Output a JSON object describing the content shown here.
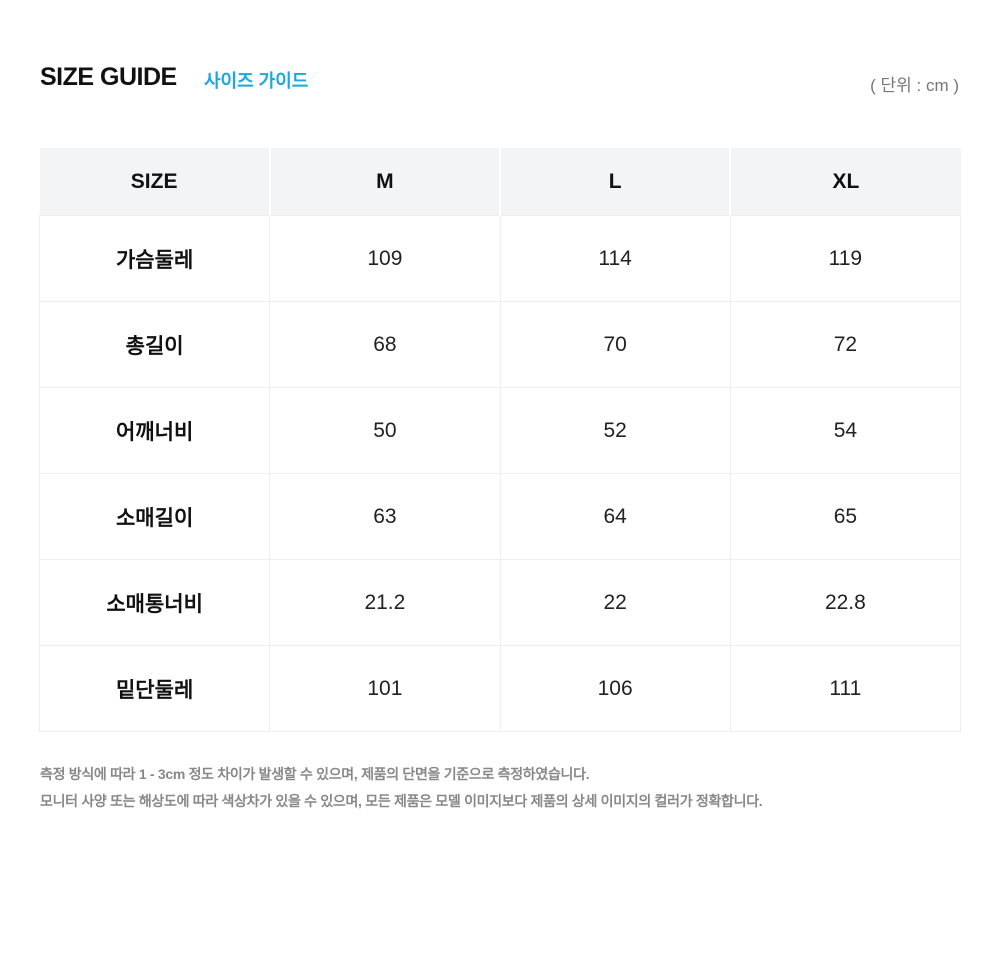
{
  "header": {
    "title": "SIZE GUIDE",
    "subtitle": "사이즈 가이드",
    "unit": "( 단위 : cm )"
  },
  "table": {
    "columns": [
      "SIZE",
      "M",
      "L",
      "XL"
    ],
    "rows": [
      [
        "가슴둘레",
        "109",
        "114",
        "119"
      ],
      [
        "총길이",
        "68",
        "70",
        "72"
      ],
      [
        "어깨너비",
        "50",
        "52",
        "54"
      ],
      [
        "소매길이",
        "63",
        "64",
        "65"
      ],
      [
        "소매통너비",
        "21.2",
        "22",
        "22.8"
      ],
      [
        "밑단둘레",
        "101",
        "106",
        "111"
      ]
    ]
  },
  "notes": [
    "측정 방식에 따라 1 - 3cm 정도 차이가 발생할 수 있으며, 제품의 단면을 기준으로 측정하였습니다.",
    "모니터 사양 또는 해상도에 따라 색상차가 있을 수 있으며, 모든 제품은 모델 이미지보다 제품의 상세 이미지의 컬러가 정확합니다."
  ],
  "colors": {
    "accent": "#1aa7dc",
    "header_bg": "#f3f4f6"
  }
}
